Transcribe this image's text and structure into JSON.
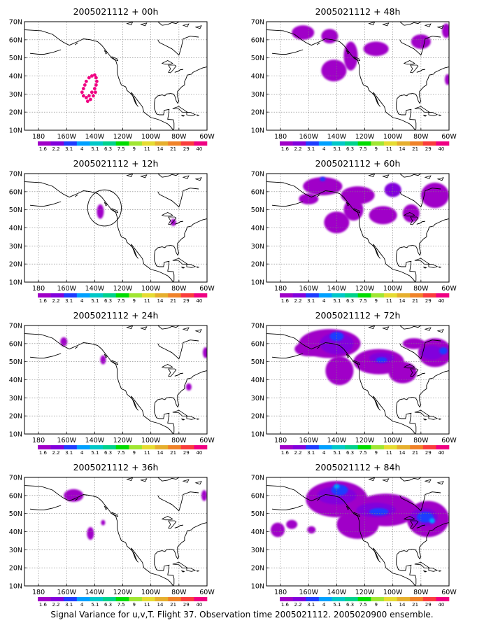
{
  "caption": "Signal Variance for u,v,T. Flight 37. Observation time 2005021112. 2005020900 ensemble.",
  "colors": {
    "scale": [
      "#a000c8",
      "#8200dc",
      "#1e3cff",
      "#00a0ff",
      "#00c8c8",
      "#00d28c",
      "#00dc00",
      "#a0e632",
      "#e6dc32",
      "#e6af2d",
      "#f08228",
      "#fa3c3c",
      "#f00082"
    ],
    "frame": "#000000",
    "grid": "#808080",
    "coast": "#000000"
  },
  "chart_data": [
    {
      "type": "heatmap",
      "title": "2005021112 + 00h",
      "xlabel": "",
      "ylabel": "",
      "xlim": [
        -190,
        -60
      ],
      "ylim": [
        10,
        70
      ],
      "xticks": [
        "180",
        "160W",
        "140W",
        "120W",
        "100W",
        "80W",
        "60W"
      ],
      "yticks": [
        "10N",
        "20N",
        "30N",
        "40N",
        "50N",
        "60N",
        "70N"
      ],
      "colorbar": [
        "1.6",
        "2.2",
        "3.1",
        "4",
        "5.1",
        "6.3",
        "7.5",
        "9",
        "11",
        "14",
        "21",
        "29",
        "40"
      ],
      "features": [
        {
          "kind": "dots",
          "name": "flight track",
          "color": "#f00082",
          "points": [
            [
              -142,
              40
            ],
            [
              -140,
              40.5
            ],
            [
              -139,
              39
            ],
            [
              -138.5,
              37
            ],
            [
              -139,
              35
            ],
            [
              -140,
              33
            ],
            [
              -142,
              31
            ],
            [
              -144,
              29
            ],
            [
              -146,
              28
            ],
            [
              -148,
              29
            ],
            [
              -149,
              31
            ],
            [
              -148,
              33
            ],
            [
              -147,
              35
            ],
            [
              -146,
              37
            ],
            [
              -144,
              39
            ],
            [
              -145,
              26
            ],
            [
              -143,
              27
            ],
            [
              -141,
              29
            ],
            [
              -139.5,
              31
            ]
          ]
        }
      ]
    },
    {
      "type": "heatmap",
      "title": "2005021112 + 12h",
      "xlabel": "",
      "ylabel": "",
      "xlim": [
        -190,
        -60
      ],
      "ylim": [
        10,
        70
      ],
      "xticks": [
        "180",
        "160W",
        "140W",
        "120W",
        "100W",
        "80W",
        "60W"
      ],
      "yticks": [
        "10N",
        "20N",
        "30N",
        "40N",
        "50N",
        "60N",
        "70N"
      ],
      "colorbar": [
        "1.6",
        "2.2",
        "3.1",
        "4",
        "5.1",
        "6.3",
        "7.5",
        "9",
        "11",
        "14",
        "21",
        "29",
        "40"
      ],
      "features": [
        {
          "kind": "blob",
          "level": 0,
          "lon": -136,
          "lat": 49,
          "rx": 2.5,
          "ry": 4
        },
        {
          "kind": "blob",
          "level": 0,
          "lon": -84,
          "lat": 43,
          "rx": 2,
          "ry": 2
        },
        {
          "kind": "circle",
          "lon": -133,
          "lat": 51,
          "rx": 10,
          "ry": 10
        }
      ]
    },
    {
      "type": "heatmap",
      "title": "2005021112 + 24h",
      "xlabel": "",
      "ylabel": "",
      "xlim": [
        -190,
        -60
      ],
      "ylim": [
        10,
        70
      ],
      "xticks": [
        "180",
        "160W",
        "140W",
        "120W",
        "100W",
        "80W",
        "60W"
      ],
      "yticks": [
        "10N",
        "20N",
        "30N",
        "40N",
        "50N",
        "60N",
        "70N"
      ],
      "colorbar": [
        "1.6",
        "2.2",
        "3.1",
        "4",
        "5.1",
        "6.3",
        "7.5",
        "9",
        "11",
        "14",
        "21",
        "29",
        "40"
      ],
      "features": [
        {
          "kind": "blob",
          "level": 0,
          "lon": -162,
          "lat": 61,
          "rx": 2.5,
          "ry": 2.5
        },
        {
          "kind": "blob",
          "level": 0,
          "lon": -134,
          "lat": 51,
          "rx": 2,
          "ry": 2.5
        },
        {
          "kind": "blob",
          "level": 0,
          "lon": -61,
          "lat": 55,
          "rx": 2,
          "ry": 3
        },
        {
          "kind": "blob",
          "level": 0,
          "lon": -73,
          "lat": 36,
          "rx": 2,
          "ry": 2
        }
      ]
    },
    {
      "type": "heatmap",
      "title": "2005021112 + 36h",
      "xlabel": "",
      "ylabel": "",
      "xlim": [
        -190,
        -60
      ],
      "ylim": [
        10,
        70
      ],
      "xticks": [
        "180",
        "160W",
        "140W",
        "120W",
        "100W",
        "80W",
        "60W"
      ],
      "yticks": [
        "10N",
        "20N",
        "30N",
        "40N",
        "50N",
        "60N",
        "70N"
      ],
      "colorbar": [
        "1.6",
        "2.2",
        "3.1",
        "4",
        "5.1",
        "6.3",
        "7.5",
        "9",
        "11",
        "14",
        "21",
        "29",
        "40"
      ],
      "features": [
        {
          "kind": "blob",
          "level": 0,
          "lon": -155,
          "lat": 60,
          "rx": 7,
          "ry": 3.5
        },
        {
          "kind": "blob",
          "level": 0,
          "lon": -143,
          "lat": 39,
          "rx": 2.5,
          "ry": 3.5
        },
        {
          "kind": "blob",
          "level": 0,
          "lon": -134,
          "lat": 45,
          "rx": 1.5,
          "ry": 1.5
        },
        {
          "kind": "blob",
          "level": 0,
          "lon": -62,
          "lat": 60,
          "rx": 2,
          "ry": 3
        }
      ]
    },
    {
      "type": "heatmap",
      "title": "2005021112 + 48h",
      "xlabel": "",
      "ylabel": "",
      "xlim": [
        -190,
        -60
      ],
      "ylim": [
        10,
        70
      ],
      "xticks": [
        "180",
        "160W",
        "140W",
        "120W",
        "100W",
        "80W",
        "60W"
      ],
      "yticks": [
        "10N",
        "20N",
        "30N",
        "40N",
        "50N",
        "60N",
        "70N"
      ],
      "colorbar": [
        "1.6",
        "2.2",
        "3.1",
        "4",
        "5.1",
        "6.3",
        "7.5",
        "9",
        "11",
        "14",
        "21",
        "29",
        "40"
      ],
      "features": [
        {
          "kind": "blob",
          "level": 0,
          "lon": -164,
          "lat": 64,
          "rx": 8,
          "ry": 4
        },
        {
          "kind": "blob",
          "level": 0,
          "lon": -145,
          "lat": 62,
          "rx": 6,
          "ry": 4
        },
        {
          "kind": "blob",
          "level": 0,
          "lon": -142,
          "lat": 43,
          "rx": 9,
          "ry": 6
        },
        {
          "kind": "blob",
          "level": 0,
          "lon": -130,
          "lat": 51,
          "rx": 5,
          "ry": 8
        },
        {
          "kind": "blob",
          "level": 0,
          "lon": -112,
          "lat": 55,
          "rx": 9,
          "ry": 4
        },
        {
          "kind": "blob",
          "level": 0,
          "lon": -80,
          "lat": 59,
          "rx": 7,
          "ry": 4
        },
        {
          "kind": "blob",
          "level": 0,
          "lon": -62,
          "lat": 65,
          "rx": 3,
          "ry": 4
        },
        {
          "kind": "blob",
          "level": 0,
          "lon": -61,
          "lat": 38,
          "rx": 2,
          "ry": 3
        }
      ]
    },
    {
      "type": "heatmap",
      "title": "2005021112 + 60h",
      "xlabel": "",
      "ylabel": "",
      "xlim": [
        -190,
        -60
      ],
      "ylim": [
        10,
        70
      ],
      "xticks": [
        "180",
        "160W",
        "140W",
        "120W",
        "100W",
        "80W",
        "60W"
      ],
      "yticks": [
        "10N",
        "20N",
        "30N",
        "40N",
        "50N",
        "60N",
        "70N"
      ],
      "colorbar": [
        "1.6",
        "2.2",
        "3.1",
        "4",
        "5.1",
        "6.3",
        "7.5",
        "9",
        "11",
        "14",
        "21",
        "29",
        "40"
      ],
      "features": [
        {
          "kind": "blob",
          "level": 0,
          "lon": -150,
          "lat": 63,
          "rx": 14,
          "ry": 5
        },
        {
          "kind": "blob",
          "level": 0,
          "lon": -160,
          "lat": 56,
          "rx": 7,
          "ry": 3
        },
        {
          "kind": "blob",
          "level": 0,
          "lon": -125,
          "lat": 58,
          "rx": 12,
          "ry": 5
        },
        {
          "kind": "blob",
          "level": 0,
          "lon": -140,
          "lat": 43,
          "rx": 9,
          "ry": 6
        },
        {
          "kind": "blob",
          "level": 0,
          "lon": -128,
          "lat": 50,
          "rx": 7,
          "ry": 6
        },
        {
          "kind": "blob",
          "level": 0,
          "lon": -107,
          "lat": 47,
          "rx": 10,
          "ry": 5
        },
        {
          "kind": "blob",
          "level": 0,
          "lon": -87,
          "lat": 48,
          "rx": 6,
          "ry": 5
        },
        {
          "kind": "blob",
          "level": 0,
          "lon": -70,
          "lat": 58,
          "rx": 10,
          "ry": 7
        },
        {
          "kind": "blob",
          "level": 1,
          "lon": -100,
          "lat": 61,
          "rx": 6,
          "ry": 4
        },
        {
          "kind": "blob",
          "level": 2,
          "lon": -150,
          "lat": 67,
          "rx": 2,
          "ry": 1.2
        },
        {
          "kind": "hole",
          "lon": -143,
          "lat": 52,
          "rx": 4,
          "ry": 2.5
        }
      ]
    },
    {
      "type": "heatmap",
      "title": "2005021112 + 72h",
      "xlabel": "",
      "ylabel": "",
      "xlim": [
        -190,
        -60
      ],
      "ylim": [
        10,
        70
      ],
      "xticks": [
        "180",
        "160W",
        "140W",
        "120W",
        "100W",
        "80W",
        "60W"
      ],
      "yticks": [
        "10N",
        "20N",
        "30N",
        "40N",
        "50N",
        "60N",
        "70N"
      ],
      "colorbar": [
        "1.6",
        "2.2",
        "3.1",
        "4",
        "5.1",
        "6.3",
        "7.5",
        "9",
        "11",
        "14",
        "21",
        "29",
        "40"
      ],
      "features": [
        {
          "kind": "blob",
          "level": 0,
          "lon": -145,
          "lat": 60,
          "rx": 22,
          "ry": 8
        },
        {
          "kind": "blob",
          "level": 0,
          "lon": -160,
          "lat": 57,
          "rx": 10,
          "ry": 4
        },
        {
          "kind": "blob",
          "level": 0,
          "lon": -138,
          "lat": 45,
          "rx": 10,
          "ry": 8
        },
        {
          "kind": "blob",
          "level": 0,
          "lon": -110,
          "lat": 50,
          "rx": 18,
          "ry": 7
        },
        {
          "kind": "blob",
          "level": 0,
          "lon": -93,
          "lat": 44,
          "rx": 10,
          "ry": 6
        },
        {
          "kind": "blob",
          "level": 0,
          "lon": -70,
          "lat": 55,
          "rx": 12,
          "ry": 8
        },
        {
          "kind": "blob",
          "level": 0,
          "lon": -85,
          "lat": 60,
          "rx": 8,
          "ry": 3
        },
        {
          "kind": "blob",
          "level": 1,
          "lon": -140,
          "lat": 60,
          "rx": 12,
          "ry": 6
        },
        {
          "kind": "blob",
          "level": 1,
          "lon": -108,
          "lat": 52,
          "rx": 9,
          "ry": 3
        },
        {
          "kind": "blob",
          "level": 1,
          "lon": -72,
          "lat": 55,
          "rx": 8,
          "ry": 4
        },
        {
          "kind": "blob",
          "level": 2,
          "lon": -140,
          "lat": 64,
          "rx": 5,
          "ry": 2.5
        },
        {
          "kind": "blob",
          "level": 2,
          "lon": -108,
          "lat": 51,
          "rx": 4,
          "ry": 1.5
        },
        {
          "kind": "blob",
          "level": 2,
          "lon": -64,
          "lat": 56,
          "rx": 3,
          "ry": 2
        }
      ]
    },
    {
      "type": "heatmap",
      "title": "2005021112 + 84h",
      "xlabel": "",
      "ylabel": "",
      "xlim": [
        -190,
        -60
      ],
      "ylim": [
        10,
        70
      ],
      "xticks": [
        "180",
        "160W",
        "140W",
        "120W",
        "100W",
        "80W",
        "60W"
      ],
      "yticks": [
        "10N",
        "20N",
        "30N",
        "40N",
        "50N",
        "60N",
        "70N"
      ],
      "colorbar": [
        "1.6",
        "2.2",
        "3.1",
        "4",
        "5.1",
        "6.3",
        "7.5",
        "9",
        "11",
        "14",
        "21",
        "29",
        "40"
      ],
      "features": [
        {
          "kind": "blob",
          "level": 0,
          "lon": -140,
          "lat": 58,
          "rx": 22,
          "ry": 10
        },
        {
          "kind": "blob",
          "level": 0,
          "lon": -105,
          "lat": 52,
          "rx": 22,
          "ry": 9
        },
        {
          "kind": "blob",
          "level": 0,
          "lon": -75,
          "lat": 47,
          "rx": 15,
          "ry": 10
        },
        {
          "kind": "blob",
          "level": 0,
          "lon": -125,
          "lat": 44,
          "rx": 15,
          "ry": 8
        },
        {
          "kind": "blob",
          "level": 0,
          "lon": -182,
          "lat": 41,
          "rx": 5,
          "ry": 4
        },
        {
          "kind": "blob",
          "level": 0,
          "lon": -172,
          "lat": 44,
          "rx": 4,
          "ry": 2.5
        },
        {
          "kind": "blob",
          "level": 0,
          "lon": -158,
          "lat": 41,
          "rx": 3,
          "ry": 2
        },
        {
          "kind": "blob",
          "level": 1,
          "lon": -140,
          "lat": 60,
          "rx": 14,
          "ry": 5
        },
        {
          "kind": "blob",
          "level": 1,
          "lon": -112,
          "lat": 52,
          "rx": 14,
          "ry": 4
        },
        {
          "kind": "blob",
          "level": 1,
          "lon": -78,
          "lat": 48,
          "rx": 10,
          "ry": 5
        },
        {
          "kind": "blob",
          "level": 2,
          "lon": -138,
          "lat": 63,
          "rx": 6,
          "ry": 3
        },
        {
          "kind": "blob",
          "level": 2,
          "lon": -110,
          "lat": 51,
          "rx": 7,
          "ry": 2
        },
        {
          "kind": "blob",
          "level": 2,
          "lon": -77,
          "lat": 48,
          "rx": 6,
          "ry": 3
        },
        {
          "kind": "blob",
          "level": 3,
          "lon": -140,
          "lat": 65,
          "rx": 2,
          "ry": 1.3
        },
        {
          "kind": "blob",
          "level": 3,
          "lon": -72,
          "lat": 46,
          "rx": 2,
          "ry": 1.5
        }
      ]
    }
  ]
}
